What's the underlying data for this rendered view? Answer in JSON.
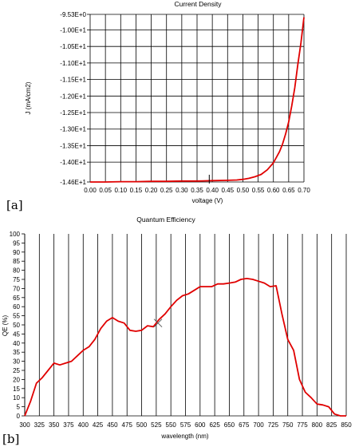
{
  "panels": {
    "a": {
      "label": "[a]"
    },
    "b": {
      "label": "[b]"
    }
  },
  "chart_data": [
    {
      "type": "line",
      "title": "Current Density",
      "xlabel": "voltage (V)",
      "ylabel": "J (mA/cm2)",
      "xlim": [
        0,
        0.7
      ],
      "ylim": [
        -14.6,
        -9.53
      ],
      "x_ticks": [
        "0.00",
        "0.05",
        "0.10",
        "0.15",
        "0.20",
        "0.25",
        "0.30",
        "0.35",
        "0.40",
        "0.45",
        "0.50",
        "0.55",
        "0.60",
        "0.65",
        "0.70"
      ],
      "y_ticks": [
        {
          "value": -9.53,
          "label": "-9.53E+0"
        },
        {
          "value": -10.0,
          "label": "-1.00E+1"
        },
        {
          "value": -10.5,
          "label": "-1.05E+1"
        },
        {
          "value": -11.0,
          "label": "-1.10E+1"
        },
        {
          "value": -11.5,
          "label": "-1.15E+1"
        },
        {
          "value": -12.0,
          "label": "-1.20E+1"
        },
        {
          "value": -12.5,
          "label": "-1.25E+1"
        },
        {
          "value": -13.0,
          "label": "-1.30E+1"
        },
        {
          "value": -13.5,
          "label": "-1.35E+1"
        },
        {
          "value": -14.0,
          "label": "-1.40E+1"
        },
        {
          "value": -14.6,
          "label": "-1.46E+1"
        }
      ],
      "grid": true,
      "cursor_marker": {
        "x": 0.39,
        "y": -14.55
      },
      "series": [
        {
          "color": "#e00000",
          "x": [
            0.0,
            0.05,
            0.1,
            0.15,
            0.2,
            0.25,
            0.3,
            0.35,
            0.4,
            0.45,
            0.48,
            0.5,
            0.52,
            0.54,
            0.56,
            0.58,
            0.6,
            0.62,
            0.63,
            0.64,
            0.65,
            0.66,
            0.67,
            0.68,
            0.69,
            0.7
          ],
          "y": [
            -14.6,
            -14.6,
            -14.59,
            -14.59,
            -14.58,
            -14.58,
            -14.57,
            -14.57,
            -14.56,
            -14.55,
            -14.54,
            -14.52,
            -14.49,
            -14.44,
            -14.37,
            -14.23,
            -14.02,
            -13.68,
            -13.45,
            -13.15,
            -12.78,
            -12.3,
            -11.75,
            -11.05,
            -10.4,
            -9.62
          ]
        }
      ]
    },
    {
      "type": "line",
      "title": "Quantum Efficiency",
      "xlabel": "wavelength (nm)",
      "ylabel": "QE (%)",
      "xlim": [
        300,
        850
      ],
      "ylim": [
        0,
        100
      ],
      "x_ticks": [
        300,
        325,
        350,
        375,
        400,
        425,
        450,
        475,
        500,
        525,
        550,
        575,
        600,
        625,
        650,
        675,
        700,
        725,
        750,
        775,
        800,
        825,
        850
      ],
      "y_ticks": [
        0,
        5,
        10,
        15,
        20,
        25,
        30,
        35,
        40,
        45,
        50,
        55,
        60,
        65,
        70,
        75,
        80,
        85,
        90,
        95,
        100
      ],
      "grid": true,
      "cursor_marker": {
        "x": 528,
        "y": 51
      },
      "series": [
        {
          "color": "#e00000",
          "x": [
            300,
            310,
            320,
            330,
            340,
            350,
            360,
            370,
            380,
            390,
            400,
            410,
            420,
            430,
            440,
            450,
            460,
            470,
            480,
            490,
            500,
            510,
            520,
            530,
            540,
            550,
            560,
            570,
            580,
            590,
            600,
            610,
            620,
            630,
            640,
            650,
            660,
            670,
            680,
            690,
            700,
            710,
            720,
            730,
            740,
            750,
            760,
            770,
            780,
            790,
            800,
            810,
            820,
            830,
            840,
            850
          ],
          "y": [
            0,
            8,
            18,
            21,
            25,
            29,
            28,
            29,
            30,
            33,
            36,
            38,
            42,
            48,
            52,
            54,
            52,
            51,
            47,
            46.5,
            47,
            49.5,
            49,
            53,
            56,
            60,
            63.5,
            66,
            67,
            69,
            71,
            71,
            71,
            72.5,
            72.5,
            73,
            73.5,
            75,
            75.5,
            75,
            74,
            73,
            71,
            71.5,
            56,
            42,
            36,
            20,
            13,
            10,
            6.5,
            6,
            5,
            1,
            0,
            0
          ]
        }
      ]
    }
  ]
}
